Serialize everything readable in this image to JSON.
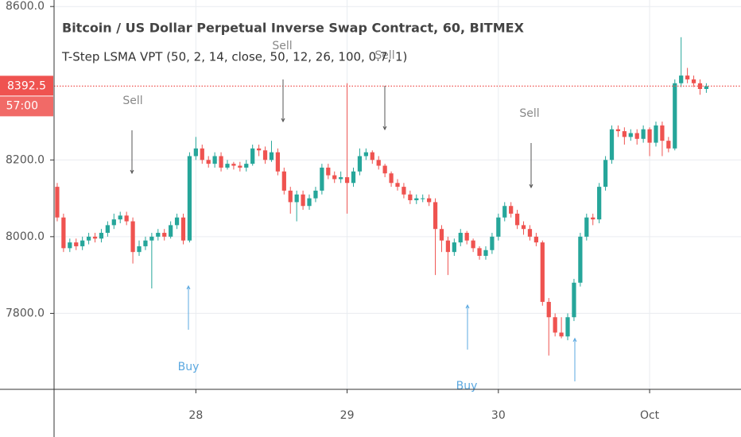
{
  "chart_data": {
    "type": "candlestick",
    "title": "Bitcoin / US Dollar Perpetual Inverse Swap Contract, 60, BITMEX",
    "subtitle": "T-Step LSMA VPT (50, 2, 14, close, 50, 12, 26, 100, 0.7, 1)",
    "countdown": "57:00",
    "signals": [
      "Sell",
      "Sell",
      "Sell",
      "Sell",
      "Buy",
      "Buy"
    ],
    "up_color": "#26a69a",
    "down_color": "#ef5350",
    "grid": true,
    "ylim": [
      7602,
      8617
    ],
    "yticks": [
      {
        "value": 7800,
        "label": "7800.0"
      },
      {
        "value": 8000,
        "label": "8000.0"
      },
      {
        "value": 8200,
        "label": "8200.0"
      },
      {
        "value": 8600,
        "label": "8600.0"
      }
    ],
    "categories": [
      null,
      null,
      null,
      null,
      null,
      null,
      null,
      null,
      null,
      null,
      null,
      null,
      null,
      null,
      null,
      null,
      null,
      null,
      null,
      null,
      null,
      null,
      "28",
      null,
      null,
      null,
      null,
      null,
      null,
      null,
      null,
      null,
      null,
      null,
      null,
      null,
      null,
      null,
      null,
      null,
      null,
      null,
      null,
      null,
      null,
      null,
      "29",
      null,
      null,
      null,
      null,
      null,
      null,
      null,
      null,
      null,
      null,
      null,
      null,
      null,
      null,
      null,
      null,
      null,
      null,
      null,
      null,
      null,
      null,
      null,
      "30",
      null,
      null,
      null,
      null,
      null,
      null,
      null,
      null,
      null,
      null,
      null,
      null,
      null,
      null,
      null,
      null,
      null,
      null,
      null,
      null,
      null,
      null,
      null,
      "Oct",
      null,
      null,
      null,
      null,
      null,
      null,
      null,
      null,
      null
    ],
    "open": [
      8130,
      8050,
      7970,
      7985,
      7975,
      7990,
      8000,
      7995,
      8010,
      8030,
      8045,
      8055,
      8040,
      7960,
      7975,
      7990,
      8000,
      8010,
      8000,
      8030,
      8050,
      7990,
      8210,
      8230,
      8200,
      8190,
      8210,
      8180,
      8190,
      8185,
      8180,
      8190,
      8230,
      8225,
      8200,
      8220,
      8170,
      8120,
      8090,
      8110,
      8080,
      8100,
      8120,
      8180,
      8160,
      8150,
      8155,
      8140,
      8170,
      8210,
      8220,
      8200,
      8185,
      8165,
      8140,
      8130,
      8110,
      8095,
      8100,
      8100,
      8090,
      8020,
      7990,
      7960,
      7985,
      8010,
      7990,
      7970,
      7950,
      7965,
      8000,
      8050,
      8080,
      8060,
      8030,
      8020,
      8000,
      7985,
      7830,
      7790,
      7750,
      7740,
      7790,
      7880,
      8000,
      8050,
      8045,
      8130,
      8200,
      8280,
      8275,
      8260,
      8270,
      8255,
      8280,
      8245,
      8290,
      8250,
      8230,
      8400,
      8420,
      8410,
      8400,
      8385
    ],
    "high": [
      8140,
      8060,
      7995,
      7995,
      8000,
      8010,
      8010,
      8020,
      8040,
      8060,
      8065,
      8065,
      8050,
      7990,
      8000,
      8010,
      8020,
      8020,
      8040,
      8060,
      8060,
      8220,
      8260,
      8240,
      8210,
      8220,
      8220,
      8200,
      8195,
      8195,
      8200,
      8240,
      8240,
      8235,
      8250,
      8230,
      8180,
      8130,
      8120,
      8120,
      8110,
      8130,
      8190,
      8190,
      8170,
      8170,
      8400,
      8180,
      8230,
      8230,
      8225,
      8210,
      8190,
      8170,
      8150,
      8140,
      8120,
      8110,
      8110,
      8110,
      8100,
      8030,
      8000,
      7995,
      8020,
      8015,
      7995,
      7975,
      7975,
      8010,
      8060,
      8090,
      8090,
      8070,
      8040,
      8030,
      8010,
      7990,
      7840,
      7800,
      7790,
      7800,
      7890,
      8010,
      8060,
      8060,
      8140,
      8210,
      8290,
      8290,
      8285,
      8280,
      8280,
      8290,
      8285,
      8300,
      8300,
      8260,
      8410,
      8520,
      8440,
      8420,
      8410,
      8400
    ],
    "low": [
      8040,
      7960,
      7960,
      7965,
      7965,
      7980,
      7985,
      7985,
      8000,
      8020,
      8035,
      8030,
      7930,
      7950,
      7965,
      7865,
      7990,
      7990,
      7995,
      8020,
      7980,
      7985,
      8200,
      8190,
      8180,
      8180,
      8170,
      8175,
      8175,
      8170,
      8170,
      8185,
      8210,
      8190,
      8195,
      8160,
      8110,
      8060,
      8040,
      8070,
      8070,
      8090,
      8110,
      8150,
      8140,
      8140,
      8060,
      8130,
      8160,
      8200,
      8190,
      8175,
      8155,
      8130,
      8120,
      8100,
      8085,
      8085,
      8090,
      8080,
      7900,
      7960,
      7900,
      7950,
      7975,
      7980,
      7960,
      7940,
      7940,
      7955,
      7990,
      8040,
      8050,
      8020,
      8005,
      7990,
      7975,
      7820,
      7690,
      7740,
      7735,
      7730,
      7780,
      7870,
      7990,
      8030,
      8035,
      8120,
      8190,
      8260,
      8240,
      8250,
      8240,
      8245,
      8210,
      8235,
      8210,
      8220,
      8225,
      8390,
      8400,
      8390,
      8370,
      8375
    ],
    "close": [
      8050,
      7970,
      7985,
      7975,
      7990,
      8000,
      7995,
      8010,
      8030,
      8045,
      8055,
      8040,
      7960,
      7975,
      7990,
      8000,
      8010,
      8000,
      8030,
      8050,
      7990,
      8210,
      8230,
      8200,
      8190,
      8210,
      8180,
      8190,
      8185,
      8180,
      8190,
      8230,
      8225,
      8200,
      8220,
      8170,
      8120,
      8090,
      8110,
      8080,
      8100,
      8120,
      8180,
      8160,
      8150,
      8155,
      8140,
      8170,
      8210,
      8220,
      8200,
      8185,
      8165,
      8140,
      8130,
      8110,
      8095,
      8100,
      8100,
      8090,
      8020,
      7990,
      7960,
      7985,
      8010,
      7990,
      7970,
      7950,
      7965,
      8000,
      8050,
      8080,
      8060,
      8030,
      8020,
      8000,
      7985,
      7830,
      7790,
      7750,
      7740,
      7790,
      7880,
      8000,
      8050,
      8045,
      8130,
      8200,
      8280,
      8275,
      8260,
      8270,
      8255,
      8280,
      8245,
      8290,
      8250,
      8230,
      8400,
      8420,
      8410,
      8400,
      8385,
      8392.5
    ]
  }
}
